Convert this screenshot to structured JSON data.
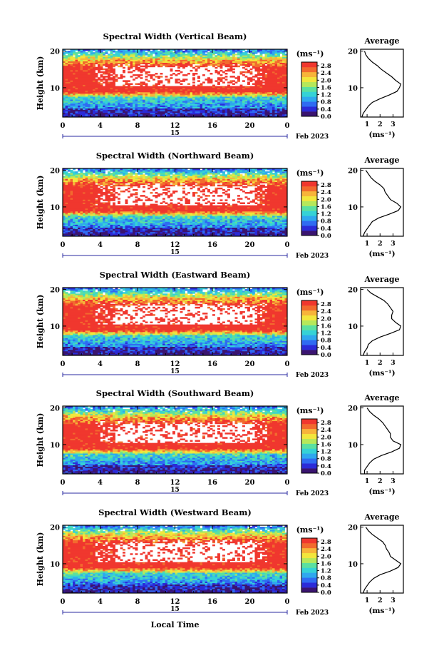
{
  "figure": {
    "xlabel": "Local Time",
    "ylabel": "Height (km)",
    "colorbar_unit": "(ms⁻¹)",
    "date_text": "Feb 2023",
    "day_marker": "15",
    "avg_title": "Average",
    "avg_xlabel": "(ms⁻¹)"
  },
  "colorscale": [
    "#3a1470",
    "#2b2bd8",
    "#2f6bf2",
    "#2fa8ee",
    "#35d2d6",
    "#5be0a0",
    "#b6e85a",
    "#f2e63c",
    "#f7b43a",
    "#f26a2e",
    "#f0372e"
  ],
  "chart_data": [
    {
      "type": "heatmap",
      "title": "Spectral Width (Vertical Beam)",
      "x_ticks": [
        "0",
        "4",
        "8",
        "12",
        "16",
        "20",
        "0"
      ],
      "xlim": [
        0,
        24
      ],
      "y_ticks": [
        "20",
        "10"
      ],
      "ylim": [
        2,
        20.5
      ],
      "colorbar_ticks": [
        "2.8",
        "2.4",
        "2.0",
        "1.6",
        "1.2",
        "0.8",
        "0.4",
        "0.0"
      ],
      "clim": [
        0.0,
        3.0
      ],
      "profile": {
        "title": "Average",
        "x_ticks": [
          "1",
          "2",
          "3"
        ],
        "xlim": [
          0.5,
          3.8
        ],
        "y_ticks": [
          "20",
          "10"
        ],
        "height_km": [
          2,
          3,
          4,
          5,
          6,
          7,
          8,
          9,
          10,
          11,
          12,
          13,
          14,
          15,
          16,
          17,
          18,
          19,
          20
        ],
        "width_ms": [
          0.6,
          0.7,
          0.9,
          1.1,
          1.4,
          2.0,
          2.7,
          3.3,
          3.5,
          3.6,
          3.2,
          2.9,
          2.5,
          2.1,
          1.8,
          1.4,
          1.1,
          0.9,
          0.8
        ]
      }
    },
    {
      "type": "heatmap",
      "title": "Spectral Width (Northward Beam)",
      "x_ticks": [
        "0",
        "4",
        "8",
        "12",
        "16",
        "20",
        "0"
      ],
      "xlim": [
        0,
        24
      ],
      "y_ticks": [
        "20",
        "10"
      ],
      "ylim": [
        2,
        20.5
      ],
      "colorbar_ticks": [
        "2.8",
        "2.4",
        "2.0",
        "1.6",
        "1.2",
        "0.8",
        "0.4",
        "0.0"
      ],
      "clim": [
        0.0,
        3.0
      ],
      "profile": {
        "title": "Average",
        "x_ticks": [
          "1",
          "2",
          "3"
        ],
        "xlim": [
          0.5,
          3.8
        ],
        "y_ticks": [
          "20",
          "10"
        ],
        "height_km": [
          2,
          3,
          4,
          5,
          6,
          7,
          8,
          9,
          10,
          11,
          12,
          13,
          14,
          15,
          16,
          17,
          18,
          19,
          20
        ],
        "width_ms": [
          0.7,
          0.8,
          1.0,
          1.2,
          1.4,
          1.9,
          2.7,
          3.4,
          3.6,
          3.3,
          2.8,
          2.6,
          2.4,
          2.3,
          2.0,
          1.6,
          1.3,
          1.1,
          0.9
        ]
      }
    },
    {
      "type": "heatmap",
      "title": "Spectral Width (Eastward Beam)",
      "x_ticks": [
        "0",
        "4",
        "8",
        "12",
        "16",
        "20",
        "0"
      ],
      "xlim": [
        0,
        24
      ],
      "y_ticks": [
        "20",
        "10"
      ],
      "ylim": [
        2,
        20.5
      ],
      "colorbar_ticks": [
        "2.8",
        "2.4",
        "2.0",
        "1.6",
        "1.2",
        "0.8",
        "0.4",
        "0.0"
      ],
      "clim": [
        0.0,
        3.0
      ],
      "profile": {
        "title": "Average",
        "x_ticks": [
          "1",
          "2",
          "3"
        ],
        "xlim": [
          0.5,
          3.8
        ],
        "y_ticks": [
          "20",
          "10"
        ],
        "height_km": [
          2,
          3,
          4,
          5,
          6,
          7,
          8,
          9,
          10,
          11,
          12,
          13,
          14,
          15,
          16,
          17,
          18,
          19,
          20
        ],
        "width_ms": [
          0.7,
          0.8,
          1.0,
          1.1,
          1.4,
          2.0,
          2.8,
          3.5,
          3.6,
          3.2,
          2.9,
          2.9,
          3.0,
          2.8,
          2.6,
          2.3,
          1.8,
          1.3,
          1.0
        ]
      }
    },
    {
      "type": "heatmap",
      "title": "Spectral Width (Southward Beam)",
      "x_ticks": [
        "0",
        "4",
        "8",
        "12",
        "16",
        "20",
        "0"
      ],
      "xlim": [
        0,
        24
      ],
      "y_ticks": [
        "20",
        "10"
      ],
      "ylim": [
        2,
        20.5
      ],
      "colorbar_ticks": [
        "2.8",
        "2.4",
        "2.0",
        "1.6",
        "1.2",
        "0.8",
        "0.4",
        "0.0"
      ],
      "clim": [
        0.0,
        3.0
      ],
      "profile": {
        "title": "Average",
        "x_ticks": [
          "1",
          "2",
          "3"
        ],
        "xlim": [
          0.5,
          3.8
        ],
        "y_ticks": [
          "20",
          "10"
        ],
        "height_km": [
          2,
          3,
          4,
          5,
          6,
          7,
          8,
          9,
          10,
          11,
          12,
          13,
          14,
          15,
          16,
          17,
          18,
          19,
          20
        ],
        "width_ms": [
          0.8,
          0.8,
          1.0,
          1.2,
          1.5,
          2.1,
          2.9,
          3.5,
          3.6,
          3.0,
          2.8,
          2.8,
          2.6,
          2.4,
          2.2,
          1.9,
          1.5,
          1.2,
          1.0
        ]
      }
    },
    {
      "type": "heatmap",
      "title": "Spectral Width (Westward Beam)",
      "x_ticks": [
        "0",
        "4",
        "8",
        "12",
        "16",
        "20",
        "0"
      ],
      "xlim": [
        0,
        24
      ],
      "y_ticks": [
        "20",
        "10"
      ],
      "ylim": [
        2,
        20.5
      ],
      "colorbar_ticks": [
        "2.8",
        "2.4",
        "2.0",
        "1.6",
        "1.2",
        "0.8",
        "0.4",
        "0.0"
      ],
      "clim": [
        0.0,
        3.0
      ],
      "profile": {
        "title": "Average",
        "x_ticks": [
          "1",
          "2",
          "3"
        ],
        "xlim": [
          0.5,
          3.8
        ],
        "y_ticks": [
          "20",
          "10"
        ],
        "height_km": [
          2,
          3,
          4,
          5,
          6,
          7,
          8,
          9,
          10,
          11,
          12,
          13,
          14,
          15,
          16,
          17,
          18,
          19,
          20
        ],
        "width_ms": [
          0.7,
          0.8,
          1.0,
          1.2,
          1.5,
          2.0,
          2.8,
          3.4,
          3.6,
          3.2,
          2.8,
          2.7,
          2.5,
          2.4,
          2.2,
          1.8,
          1.4,
          1.1,
          0.9
        ]
      }
    }
  ]
}
